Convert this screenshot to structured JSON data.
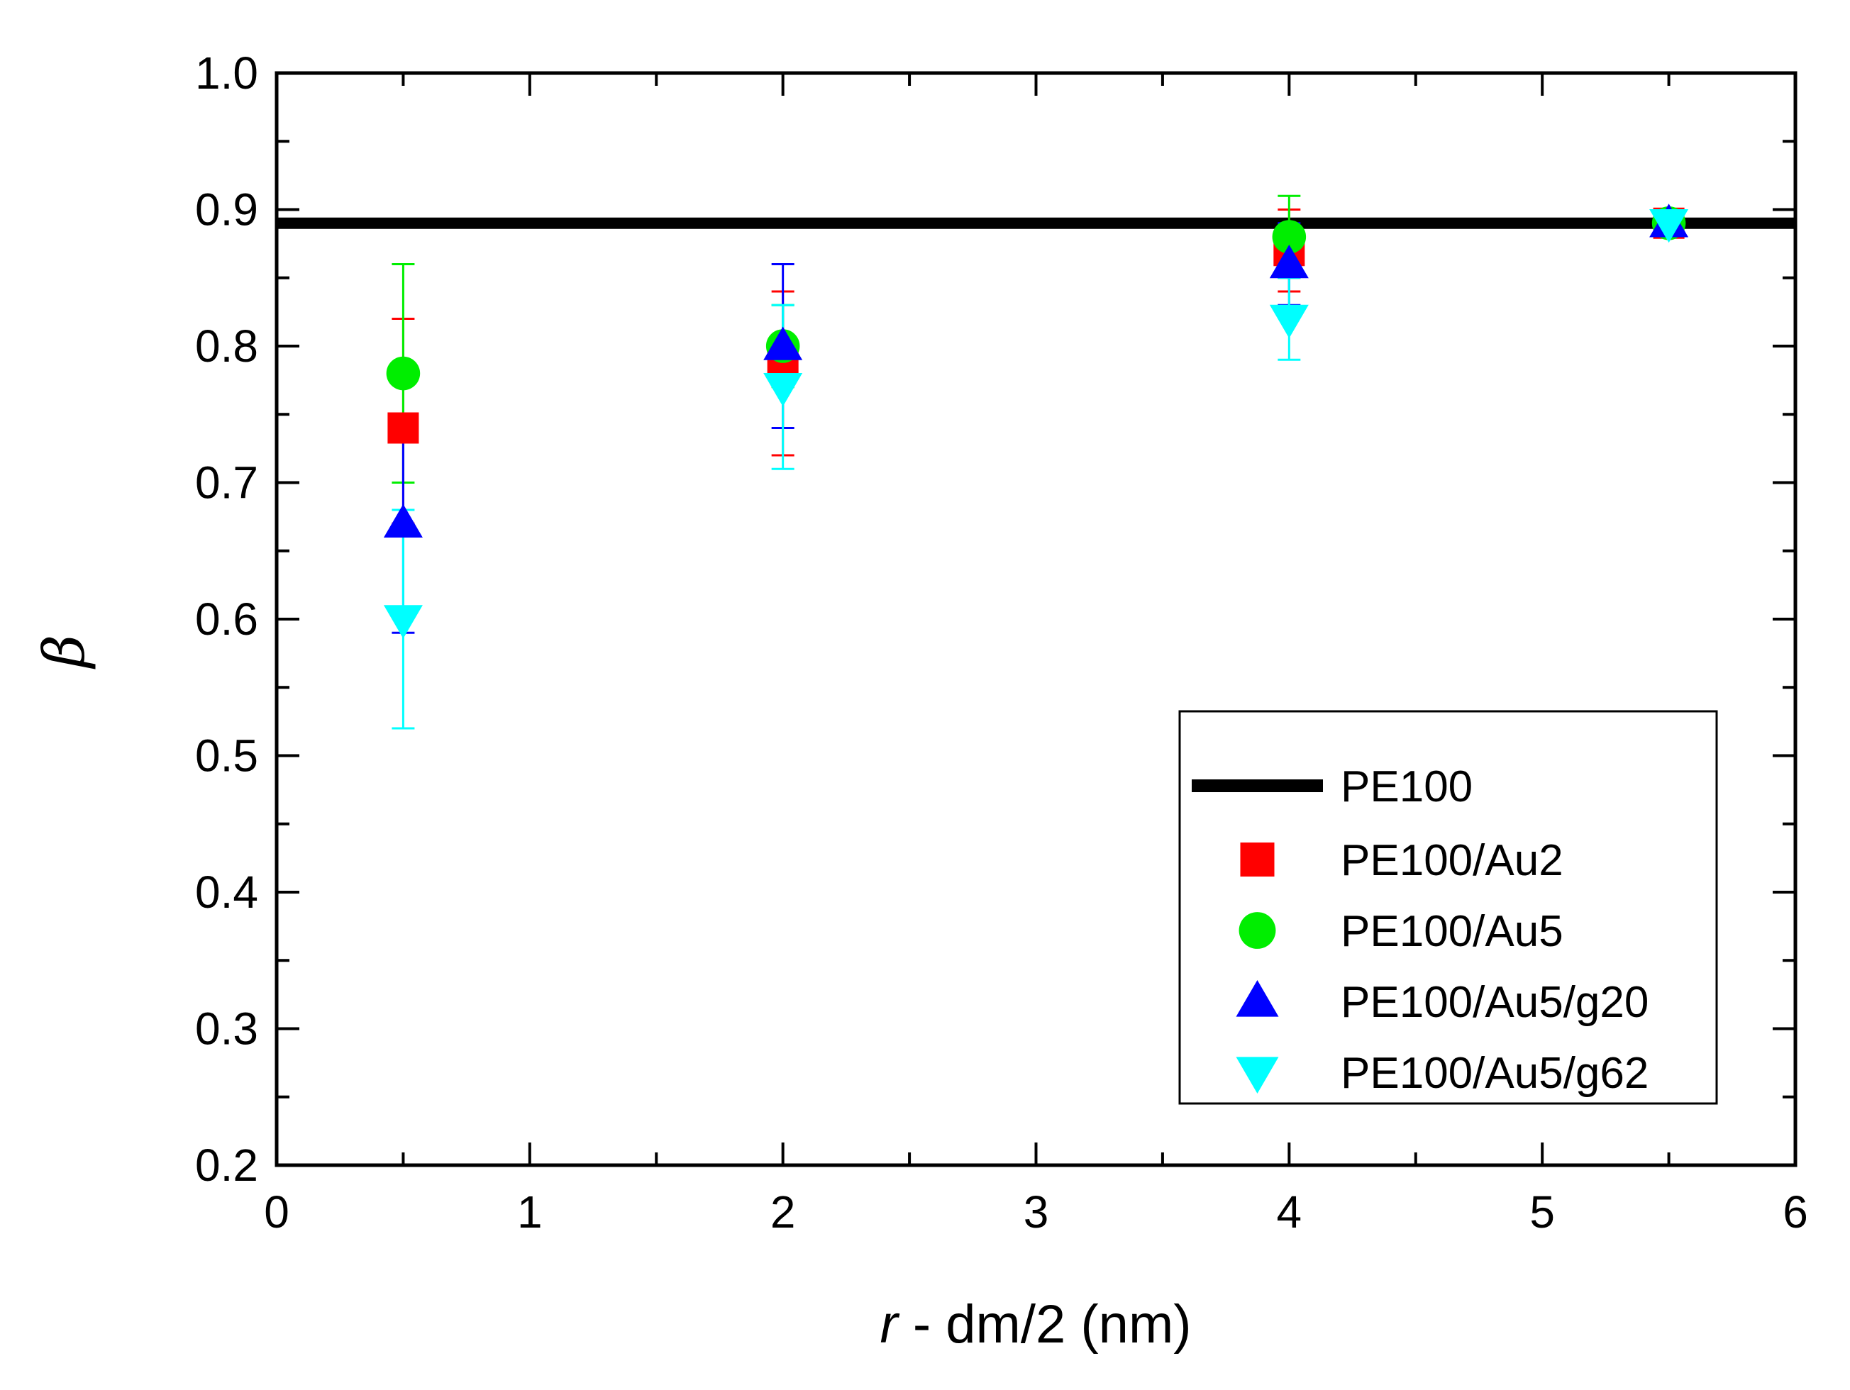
{
  "chart_data": {
    "type": "scatter",
    "title": "",
    "xlabel": {
      "italic": "r",
      "rest": " - dm/2 (nm)"
    },
    "ylabel": "β",
    "xlim": [
      0,
      6
    ],
    "ylim": [
      0.2,
      1.0
    ],
    "xticks": [
      0,
      1,
      2,
      3,
      4,
      5,
      6
    ],
    "xtick_labels": [
      "0",
      "1",
      "2",
      "3",
      "4",
      "5",
      "6"
    ],
    "yticks": [
      0.2,
      0.3,
      0.4,
      0.5,
      0.6,
      0.7,
      0.8,
      0.9,
      1.0
    ],
    "ytick_labels": [
      "0.2",
      "0.3",
      "0.4",
      "0.5",
      "0.6",
      "0.7",
      "0.8",
      "0.9",
      "1.0"
    ],
    "grid": false,
    "legend_position": "bottom-right",
    "reference_line": {
      "name": "PE100",
      "y": 0.89,
      "color": "#000000"
    },
    "series": [
      {
        "name": "PE100/Au2",
        "marker": "square",
        "color": "#ff0000",
        "x": [
          0.5,
          2,
          4,
          5.5
        ],
        "y": [
          0.74,
          0.79,
          0.87,
          0.89
        ],
        "err_low": [
          0.67,
          0.72,
          0.84,
          0.88
        ],
        "err_high": [
          0.82,
          0.84,
          0.9,
          0.9
        ]
      },
      {
        "name": "PE100/Au5",
        "marker": "circle",
        "color": "#00ee00",
        "x": [
          0.5,
          2,
          4,
          5.5
        ],
        "y": [
          0.78,
          0.8,
          0.88,
          0.89
        ],
        "err_low": [
          0.7,
          0.77,
          0.85,
          0.88
        ],
        "err_high": [
          0.86,
          0.83,
          0.91,
          0.9
        ]
      },
      {
        "name": "PE100/Au5/g20",
        "marker": "triangle-up",
        "color": "#0000ff",
        "x": [
          0.5,
          2,
          4,
          5.5
        ],
        "y": [
          0.67,
          0.8,
          0.86,
          0.89
        ],
        "err_low": [
          0.59,
          0.74,
          0.83,
          0.88
        ],
        "err_high": [
          0.75,
          0.86,
          0.89,
          0.9
        ]
      },
      {
        "name": "PE100/Au5/g62",
        "marker": "triangle-down",
        "color": "#00ffff",
        "x": [
          0.5,
          2,
          4,
          5.5
        ],
        "y": [
          0.6,
          0.77,
          0.82,
          0.89
        ],
        "err_low": [
          0.52,
          0.71,
          0.79,
          0.88
        ],
        "err_high": [
          0.68,
          0.83,
          0.85,
          0.9
        ]
      }
    ]
  }
}
